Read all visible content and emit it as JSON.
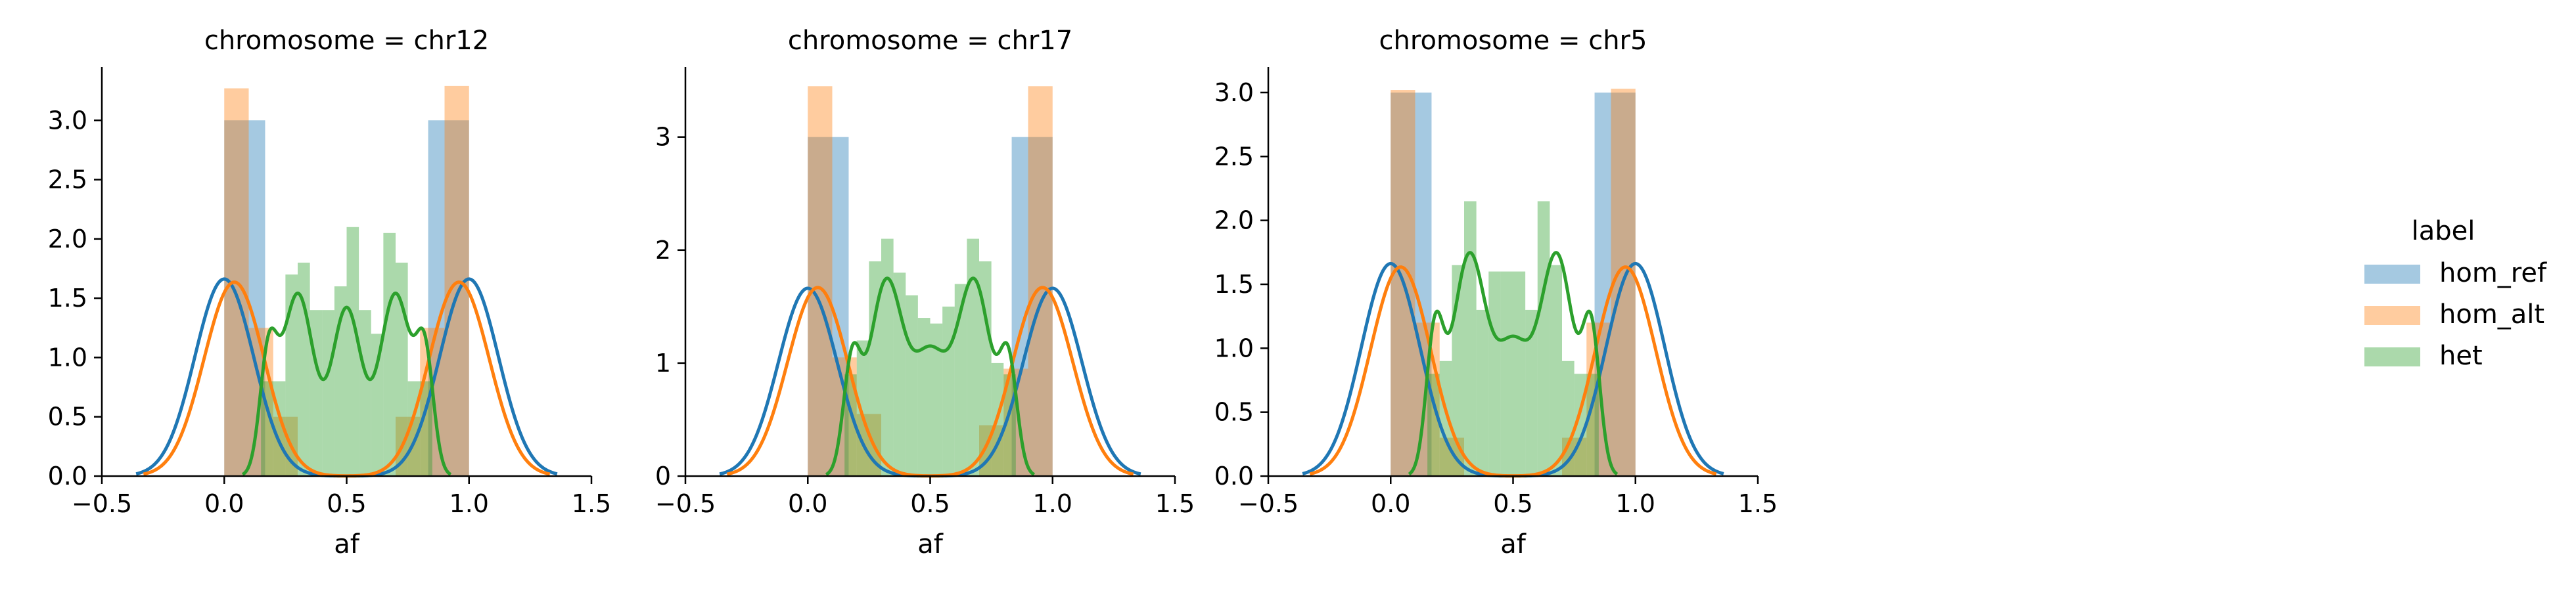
{
  "chart_data": [
    {
      "type": "histogram+kde",
      "title": "chromosome = chr12",
      "xlabel": "af",
      "xlim": [
        -0.5,
        1.5
      ],
      "ylim": [
        0,
        3.45
      ],
      "xticks": [
        "−0.5",
        "0.0",
        "0.5",
        "1.0",
        "1.5"
      ],
      "xtick_values": [
        -0.5,
        0.0,
        0.5,
        1.0,
        1.5
      ],
      "yticks": [
        "0.0",
        "0.5",
        "1.0",
        "1.5",
        "2.0",
        "2.5",
        "3.0"
      ],
      "ytick_values": [
        0.0,
        0.5,
        1.0,
        1.5,
        2.0,
        2.5,
        3.0
      ],
      "series": [
        {
          "name": "hom_ref",
          "color": "#1f77b4",
          "bins": [
            [
              0.0,
              0.167,
              3.0
            ],
            [
              0.833,
              1.0,
              3.0
            ]
          ],
          "kde": {
            "components": [
              [
                0.0,
                0.12,
                0.5
              ],
              [
                1.0,
                0.12,
                0.5
              ]
            ]
          }
        },
        {
          "name": "hom_alt",
          "color": "#ff7f0e",
          "bins": [
            [
              0.0,
              0.1,
              3.27
            ],
            [
              0.1,
              0.2,
              1.25
            ],
            [
              0.2,
              0.3,
              0.5
            ],
            [
              0.7,
              0.8,
              0.5
            ],
            [
              0.8,
              0.9,
              1.25
            ],
            [
              0.9,
              1.0,
              3.29
            ]
          ],
          "kde": {
            "components": [
              [
                0.03,
                0.12,
                0.45
              ],
              [
                0.12,
                0.1,
                0.05
              ],
              [
                0.97,
                0.12,
                0.45
              ],
              [
                0.88,
                0.1,
                0.05
              ]
            ]
          }
        },
        {
          "name": "het",
          "color": "#2ca02c",
          "bins": [
            [
              0.15,
              0.2,
              0.8
            ],
            [
              0.2,
              0.25,
              0.8
            ],
            [
              0.25,
              0.3,
              1.7
            ],
            [
              0.3,
              0.35,
              1.8
            ],
            [
              0.35,
              0.4,
              1.4
            ],
            [
              0.4,
              0.45,
              1.4
            ],
            [
              0.45,
              0.5,
              1.6
            ],
            [
              0.5,
              0.55,
              2.1
            ],
            [
              0.55,
              0.6,
              1.4
            ],
            [
              0.6,
              0.65,
              1.2
            ],
            [
              0.65,
              0.7,
              2.05
            ],
            [
              0.7,
              0.75,
              1.8
            ],
            [
              0.75,
              0.8,
              0.8
            ],
            [
              0.8,
              0.85,
              0.8
            ]
          ],
          "kde": {
            "components": [
              [
                0.18,
                0.035,
                0.08
              ],
              [
                0.3,
                0.065,
                0.25
              ],
              [
                0.5,
                0.06,
                0.21
              ],
              [
                0.7,
                0.065,
                0.25
              ],
              [
                0.82,
                0.035,
                0.08
              ]
            ]
          }
        }
      ]
    },
    {
      "type": "histogram+kde",
      "title": "chromosome = chr17",
      "xlabel": "af",
      "xlim": [
        -0.5,
        1.5
      ],
      "ylim": [
        0,
        3.62
      ],
      "xticks": [
        "−0.5",
        "0.0",
        "0.5",
        "1.0",
        "1.5"
      ],
      "xtick_values": [
        -0.5,
        0.0,
        0.5,
        1.0,
        1.5
      ],
      "yticks": [
        "0",
        "1",
        "2",
        "3"
      ],
      "ytick_values": [
        0,
        1,
        2,
        3
      ],
      "series": [
        {
          "name": "hom_ref",
          "color": "#1f77b4",
          "bins": [
            [
              0.0,
              0.167,
              3.0
            ],
            [
              0.833,
              1.0,
              3.0
            ]
          ],
          "kde": {
            "components": [
              [
                0.0,
                0.12,
                0.5
              ],
              [
                1.0,
                0.12,
                0.5
              ]
            ]
          }
        },
        {
          "name": "hom_alt",
          "color": "#ff7f0e",
          "bins": [
            [
              0.0,
              0.1,
              3.45
            ],
            [
              0.1,
              0.2,
              1.05
            ],
            [
              0.2,
              0.3,
              0.55
            ],
            [
              0.7,
              0.8,
              0.45
            ],
            [
              0.8,
              0.9,
              0.95
            ],
            [
              0.9,
              1.0,
              3.45
            ]
          ],
          "kde": {
            "components": [
              [
                0.03,
                0.12,
                0.46
              ],
              [
                0.12,
                0.1,
                0.05
              ],
              [
                0.97,
                0.12,
                0.46
              ],
              [
                0.88,
                0.1,
                0.05
              ]
            ]
          }
        },
        {
          "name": "het",
          "color": "#2ca02c",
          "bins": [
            [
              0.15,
              0.2,
              0.9
            ],
            [
              0.2,
              0.25,
              1.2
            ],
            [
              0.25,
              0.3,
              1.9
            ],
            [
              0.3,
              0.35,
              2.1
            ],
            [
              0.35,
              0.4,
              1.8
            ],
            [
              0.4,
              0.45,
              1.6
            ],
            [
              0.45,
              0.5,
              1.4
            ],
            [
              0.5,
              0.55,
              1.35
            ],
            [
              0.55,
              0.6,
              1.5
            ],
            [
              0.6,
              0.65,
              1.7
            ],
            [
              0.65,
              0.7,
              2.1
            ],
            [
              0.7,
              0.75,
              1.9
            ],
            [
              0.75,
              0.8,
              1.0
            ],
            [
              0.8,
              0.85,
              0.9
            ]
          ],
          "kde": {
            "components": [
              [
                0.18,
                0.035,
                0.08
              ],
              [
                0.32,
                0.07,
                0.3
              ],
              [
                0.5,
                0.07,
                0.18
              ],
              [
                0.68,
                0.07,
                0.3
              ],
              [
                0.82,
                0.035,
                0.08
              ]
            ]
          }
        }
      ]
    },
    {
      "type": "histogram+kde",
      "title": "chromosome = chr5",
      "xlabel": "af",
      "xlim": [
        -0.5,
        1.5
      ],
      "ylim": [
        0,
        3.2
      ],
      "xticks": [
        "−0.5",
        "0.0",
        "0.5",
        "1.0",
        "1.5"
      ],
      "xtick_values": [
        -0.5,
        0.0,
        0.5,
        1.0,
        1.5
      ],
      "yticks": [
        "0.0",
        "0.5",
        "1.0",
        "1.5",
        "2.0",
        "2.5",
        "3.0"
      ],
      "ytick_values": [
        0.0,
        0.5,
        1.0,
        1.5,
        2.0,
        2.5,
        3.0
      ],
      "series": [
        {
          "name": "hom_ref",
          "color": "#1f77b4",
          "bins": [
            [
              0.0,
              0.167,
              3.0
            ],
            [
              0.833,
              1.0,
              3.0
            ]
          ],
          "kde": {
            "components": [
              [
                0.0,
                0.12,
                0.5
              ],
              [
                1.0,
                0.12,
                0.5
              ]
            ]
          }
        },
        {
          "name": "hom_alt",
          "color": "#ff7f0e",
          "bins": [
            [
              0.0,
              0.1,
              3.02
            ],
            [
              0.1,
              0.2,
              1.2
            ],
            [
              0.2,
              0.3,
              0.3
            ],
            [
              0.7,
              0.8,
              0.3
            ],
            [
              0.8,
              0.9,
              1.2
            ],
            [
              0.9,
              1.0,
              3.03
            ]
          ],
          "kde": {
            "components": [
              [
                0.03,
                0.12,
                0.45
              ],
              [
                0.12,
                0.1,
                0.05
              ],
              [
                0.97,
                0.12,
                0.45
              ],
              [
                0.88,
                0.1,
                0.05
              ]
            ]
          }
        },
        {
          "name": "het",
          "color": "#2ca02c",
          "bins": [
            [
              0.15,
              0.2,
              0.8
            ],
            [
              0.2,
              0.25,
              0.9
            ],
            [
              0.25,
              0.3,
              1.65
            ],
            [
              0.3,
              0.35,
              2.15
            ],
            [
              0.35,
              0.4,
              1.3
            ],
            [
              0.4,
              0.45,
              1.6
            ],
            [
              0.45,
              0.5,
              1.6
            ],
            [
              0.5,
              0.55,
              1.6
            ],
            [
              0.55,
              0.6,
              1.3
            ],
            [
              0.6,
              0.65,
              2.15
            ],
            [
              0.65,
              0.7,
              1.65
            ],
            [
              0.7,
              0.75,
              0.9
            ],
            [
              0.75,
              0.8,
              0.8
            ],
            [
              0.8,
              0.85,
              0.8
            ]
          ],
          "kde": {
            "components": [
              [
                0.18,
                0.035,
                0.09
              ],
              [
                0.32,
                0.07,
                0.3
              ],
              [
                0.5,
                0.07,
                0.17
              ],
              [
                0.68,
                0.07,
                0.3
              ],
              [
                0.82,
                0.035,
                0.09
              ]
            ]
          }
        }
      ]
    }
  ],
  "legend": {
    "title": "label",
    "items": [
      {
        "name": "hom_ref",
        "color": "#1f77b4"
      },
      {
        "name": "hom_alt",
        "color": "#ff7f0e"
      },
      {
        "name": "het",
        "color": "#2ca02c"
      }
    ],
    "placement": "right"
  }
}
